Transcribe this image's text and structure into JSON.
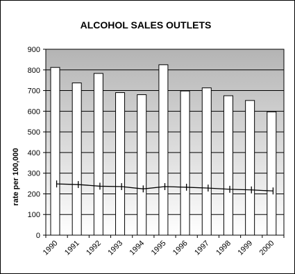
{
  "chart_data": {
    "type": "bar",
    "title": "ALCOHOL SALES OUTLETS",
    "xlabel": "",
    "ylabel": "rate per 100,000",
    "categories": [
      "1990",
      "1991",
      "1992",
      "1993",
      "1994",
      "1995",
      "1996",
      "1997",
      "1998",
      "1999",
      "2000"
    ],
    "series": [
      {
        "type": "bar",
        "values": [
          812,
          737,
          783,
          690,
          680,
          825,
          698,
          713,
          675,
          652,
          597
        ]
      },
      {
        "type": "line",
        "values": [
          248,
          245,
          237,
          235,
          224,
          235,
          232,
          228,
          222,
          219,
          214
        ]
      }
    ],
    "ylim": [
      0,
      900
    ],
    "yticks": [
      0,
      100,
      200,
      300,
      400,
      500,
      600,
      700,
      800,
      900
    ],
    "grid": true,
    "legend": "none",
    "colors": {
      "bar_fill": "#ffffff",
      "bar_stroke": "#000000",
      "line": "#000000",
      "plot_bg_top": "#b4b4b4",
      "plot_bg_bottom": "#ffffff"
    }
  }
}
